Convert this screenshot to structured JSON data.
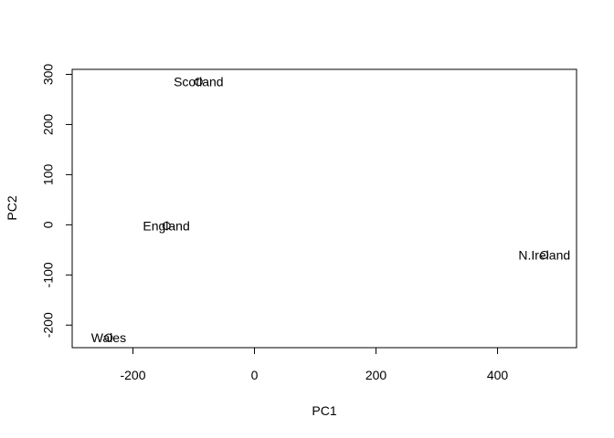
{
  "chart_data": {
    "type": "scatter",
    "title": "",
    "xlabel": "PC1",
    "ylabel": "PC2",
    "xlim": [
      -300,
      530
    ],
    "ylim": [
      -245,
      310
    ],
    "xticks": [
      -200,
      0,
      200,
      400
    ],
    "yticks": [
      -200,
      -100,
      0,
      100,
      200,
      300
    ],
    "xtick_labels": [
      "-200",
      "0",
      "200",
      "400"
    ],
    "ytick_labels": [
      "-200",
      "-100",
      "0",
      "100",
      "200",
      "300"
    ],
    "grid": false,
    "points": [
      {
        "label": "England",
        "x": -145,
        "y": -2
      },
      {
        "label": "Wales",
        "x": -240,
        "y": -225
      },
      {
        "label": "Scotland",
        "x": -92,
        "y": 285
      },
      {
        "label": "N.Ireland",
        "x": 477,
        "y": -60
      }
    ]
  }
}
